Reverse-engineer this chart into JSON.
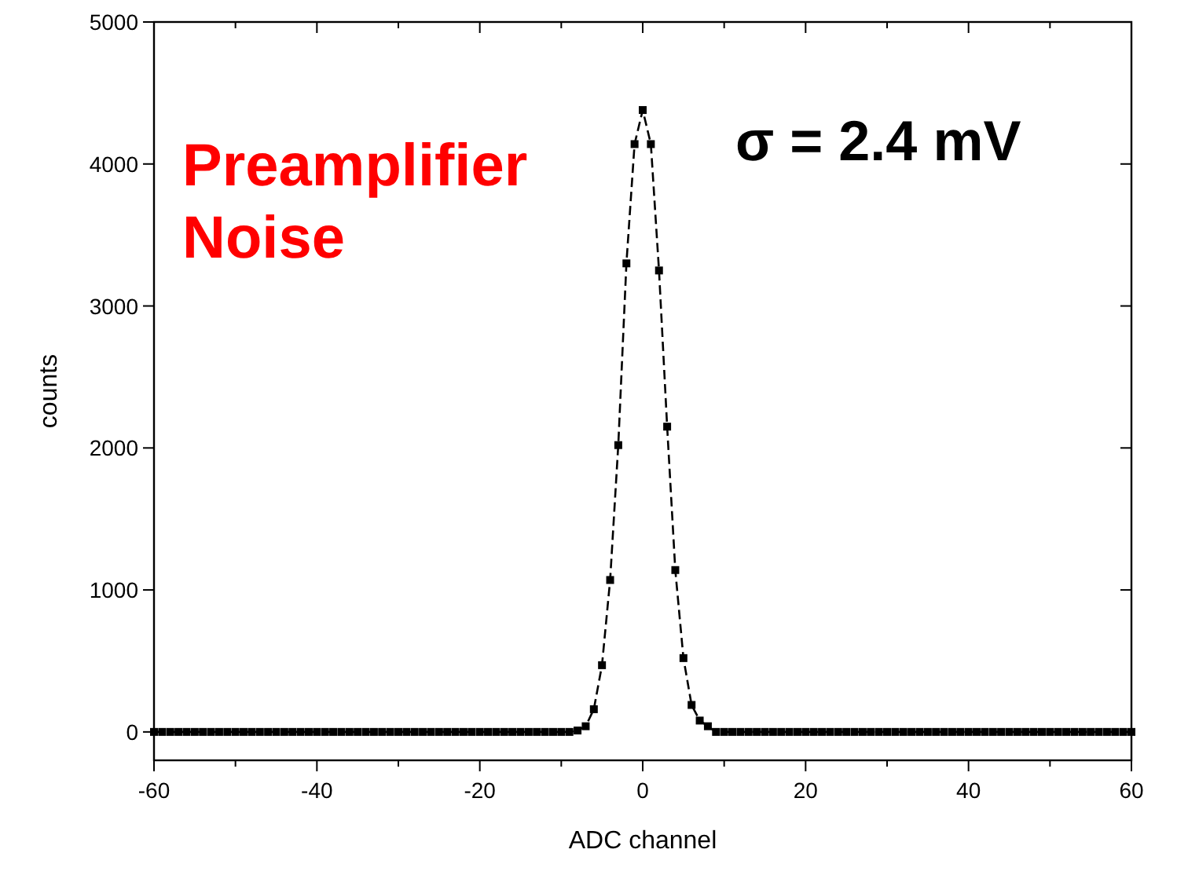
{
  "chart_data": {
    "type": "line",
    "xlabel": "ADC channel",
    "ylabel": "counts",
    "annotations": [
      "Preamplifier Noise",
      "σ = 2.4 mV"
    ],
    "x": [
      -60,
      -59,
      -58,
      -57,
      -56,
      -55,
      -54,
      -53,
      -52,
      -51,
      -50,
      -49,
      -48,
      -47,
      -46,
      -45,
      -44,
      -43,
      -42,
      -41,
      -40,
      -39,
      -38,
      -37,
      -36,
      -35,
      -34,
      -33,
      -32,
      -31,
      -30,
      -29,
      -28,
      -27,
      -26,
      -25,
      -24,
      -23,
      -22,
      -21,
      -20,
      -19,
      -18,
      -17,
      -16,
      -15,
      -14,
      -13,
      -12,
      -11,
      -10,
      -9,
      -8,
      -7,
      -6,
      -5,
      -4,
      -3,
      -2,
      -1,
      0,
      1,
      2,
      3,
      4,
      5,
      6,
      7,
      8,
      9,
      10,
      11,
      12,
      13,
      14,
      15,
      16,
      17,
      18,
      19,
      20,
      21,
      22,
      23,
      24,
      25,
      26,
      27,
      28,
      29,
      30,
      31,
      32,
      33,
      34,
      35,
      36,
      37,
      38,
      39,
      40,
      41,
      42,
      43,
      44,
      45,
      46,
      47,
      48,
      49,
      50,
      51,
      52,
      53,
      54,
      55,
      56,
      57,
      58,
      59,
      60
    ],
    "series": [
      {
        "color": "#000000",
        "values": [
          0,
          0,
          0,
          0,
          0,
          0,
          0,
          0,
          0,
          0,
          0,
          0,
          0,
          0,
          0,
          0,
          0,
          0,
          0,
          0,
          0,
          0,
          0,
          0,
          0,
          0,
          0,
          0,
          0,
          0,
          0,
          0,
          0,
          0,
          0,
          0,
          0,
          0,
          0,
          0,
          0,
          0,
          0,
          0,
          0,
          0,
          0,
          0,
          0,
          0,
          0,
          0,
          10,
          40,
          160,
          470,
          1070,
          2020,
          3300,
          4140,
          4380,
          4140,
          3250,
          2150,
          1140,
          520,
          190,
          80,
          40,
          0,
          0,
          0,
          0,
          0,
          0,
          0,
          0,
          0,
          0,
          0,
          0,
          0,
          0,
          0,
          0,
          0,
          0,
          0,
          0,
          0,
          0,
          0,
          0,
          0,
          0,
          0,
          0,
          0,
          0,
          0,
          0,
          0,
          0,
          0,
          0,
          0,
          0,
          0,
          0,
          0,
          0,
          0,
          0,
          0,
          0,
          0,
          0,
          0,
          0,
          0,
          0
        ]
      }
    ],
    "xlim": [
      -60,
      60
    ],
    "xticks": [
      -60,
      {
        "value": -50,
        "label": null
      },
      -40,
      {
        "value": -30,
        "label": null
      },
      -20,
      {
        "value": -10,
        "label": null
      },
      0,
      {
        "value": 10,
        "label": null
      },
      20,
      {
        "value": 30,
        "label": null
      },
      40,
      {
        "value": 50,
        "label": null
      },
      60
    ],
    "ylim": [
      -200,
      5000
    ],
    "yticks": [
      0,
      1000,
      2000,
      3000,
      4000,
      5000
    ],
    "grid": false,
    "marker": "square",
    "line_style": "dashed"
  }
}
